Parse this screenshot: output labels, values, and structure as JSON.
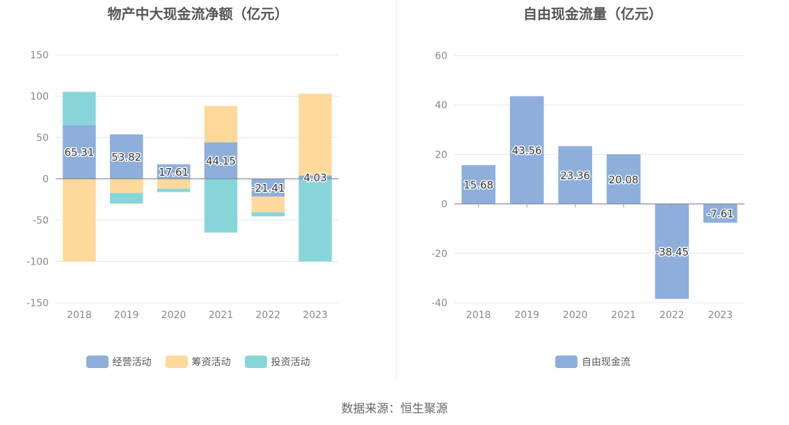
{
  "chart_data": [
    {
      "type": "bar",
      "stacked": true,
      "title": "物产中大现金流净额（亿元）",
      "categories": [
        "2018",
        "2019",
        "2020",
        "2021",
        "2022",
        "2023"
      ],
      "ylim": [
        -150,
        150
      ],
      "yticks": [
        -150,
        -100,
        -50,
        0,
        50,
        100,
        150
      ],
      "grid": true,
      "legend_position": "bottom",
      "series": [
        {
          "name": "经营活动",
          "color": "#8eaedb",
          "values": [
            65.31,
            53.82,
            17.61,
            44.15,
            -21.41,
            4.03
          ]
        },
        {
          "name": "筹资活动",
          "color": "#fed99c",
          "values": [
            -100,
            -17,
            -12,
            44,
            -19,
            99
          ]
        },
        {
          "name": "投资活动",
          "color": "#88d5d9",
          "values": [
            40,
            -13,
            -4,
            -65,
            -5,
            -100
          ]
        }
      ],
      "data_labels": [
        "65.31",
        "53.82",
        "17.61",
        "44.15",
        "-21.41",
        "4.03"
      ]
    },
    {
      "type": "bar",
      "title": "自由现金流量（亿元）",
      "categories": [
        "2018",
        "2019",
        "2020",
        "2021",
        "2022",
        "2023"
      ],
      "ylim": [
        -40,
        60
      ],
      "yticks": [
        -40,
        -20,
        0,
        20,
        40,
        60
      ],
      "grid": true,
      "legend_position": "bottom",
      "series": [
        {
          "name": "自由现金流",
          "color": "#8eaedb",
          "values": [
            15.68,
            43.56,
            23.36,
            20.08,
            -38.45,
            -7.61
          ]
        }
      ],
      "data_labels": [
        "15.68",
        "43.56",
        "23.36",
        "20.08",
        "-38.45",
        "-7.61"
      ]
    }
  ],
  "source_text": "数据来源：恒生聚源"
}
